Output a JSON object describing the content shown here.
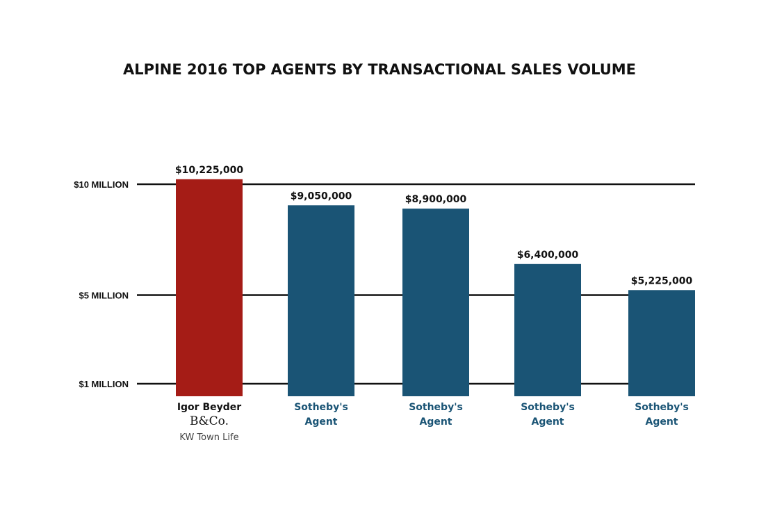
{
  "chart_data": {
    "type": "bar",
    "title": "ALPINE 2016 TOP AGENTS BY TRANSACTIONAL SALES VOLUME",
    "xlabel": "",
    "ylabel": "",
    "categories": [
      {
        "lines": [
          "Igor Beyder"
        ],
        "logo": "B&Co.",
        "sub": "KW Town Life"
      },
      {
        "lines": [
          "Sotheby's",
          "Agent"
        ]
      },
      {
        "lines": [
          "Sotheby's",
          "Agent"
        ]
      },
      {
        "lines": [
          "Sotheby's",
          "Agent"
        ]
      },
      {
        "lines": [
          "Sotheby's",
          "Agent"
        ]
      }
    ],
    "values": [
      10225000,
      9050000,
      8900000,
      6400000,
      5225000
    ],
    "value_labels": [
      "$10,225,000",
      "$9,050,000",
      "$8,900,000",
      "$6,400,000",
      "$5,225,000"
    ],
    "y_ticks": [
      {
        "value": 1000000,
        "label": "$1 MILLION"
      },
      {
        "value": 5000000,
        "label": "$5 MILLION"
      },
      {
        "value": 10000000,
        "label": "$10 MILLION"
      }
    ],
    "ylim": [
      1000000,
      10225000
    ],
    "grid": true,
    "legend": "none",
    "colors": {
      "highlight": "#a51c16",
      "bar": "#1a5475",
      "highlight_label": "#111111",
      "bar_label": "#1a5475",
      "grid": "#111111"
    }
  }
}
